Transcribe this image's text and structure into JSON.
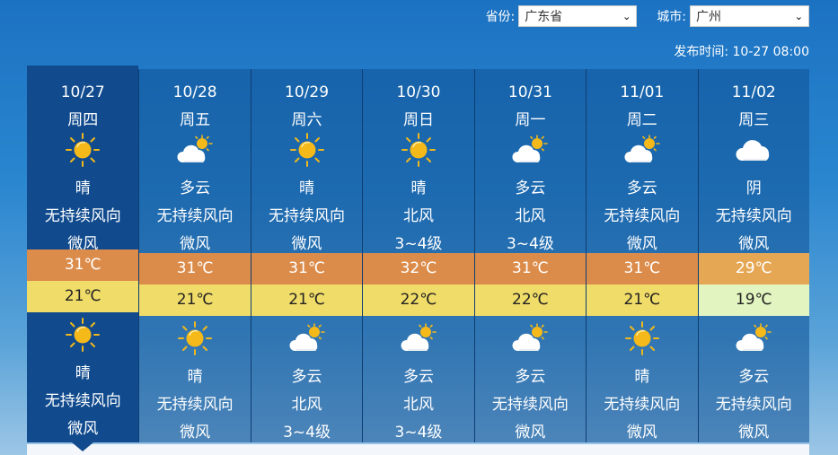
{
  "header": {
    "province_label": "省份:",
    "province_value": "广东省",
    "city_label": "城市:",
    "city_value": "广州",
    "publish_label": "发布时间:",
    "publish_time": "10-27 08:00"
  },
  "days": [
    {
      "date": "10/27",
      "weekday": "周四",
      "day_icon": "sun",
      "day_weather": "晴",
      "day_wind_dir": "无持续风向",
      "day_wind_force": "微风",
      "high": "31℃",
      "high_color": "#dc8c4a",
      "low": "21℃",
      "low_color": "#f0dc68",
      "night_icon": "sun",
      "night_weather": "晴",
      "night_wind_dir": "无持续风向",
      "night_wind_force": "微风"
    },
    {
      "date": "10/28",
      "weekday": "周五",
      "day_icon": "partly-cloudy",
      "day_weather": "多云",
      "day_wind_dir": "无持续风向",
      "day_wind_force": "微风",
      "high": "31℃",
      "high_color": "#dc8c4a",
      "low": "21℃",
      "low_color": "#f0dc68",
      "night_icon": "sun",
      "night_weather": "晴",
      "night_wind_dir": "无持续风向",
      "night_wind_force": "微风"
    },
    {
      "date": "10/29",
      "weekday": "周六",
      "day_icon": "sun",
      "day_weather": "晴",
      "day_wind_dir": "无持续风向",
      "day_wind_force": "微风",
      "high": "31℃",
      "high_color": "#dc8c4a",
      "low": "21℃",
      "low_color": "#f0dc68",
      "night_icon": "partly-cloudy",
      "night_weather": "多云",
      "night_wind_dir": "北风",
      "night_wind_force": "3~4级"
    },
    {
      "date": "10/30",
      "weekday": "周日",
      "day_icon": "sun",
      "day_weather": "晴",
      "day_wind_dir": "北风",
      "day_wind_force": "3~4级",
      "high": "32℃",
      "high_color": "#dc8c4a",
      "low": "22℃",
      "low_color": "#f0dc68",
      "night_icon": "partly-cloudy",
      "night_weather": "多云",
      "night_wind_dir": "北风",
      "night_wind_force": "3~4级"
    },
    {
      "date": "10/31",
      "weekday": "周一",
      "day_icon": "partly-cloudy",
      "day_weather": "多云",
      "day_wind_dir": "北风",
      "day_wind_force": "3~4级",
      "high": "31℃",
      "high_color": "#dc8c4a",
      "low": "22℃",
      "low_color": "#f0dc68",
      "night_icon": "partly-cloudy",
      "night_weather": "多云",
      "night_wind_dir": "无持续风向",
      "night_wind_force": "微风"
    },
    {
      "date": "11/01",
      "weekday": "周二",
      "day_icon": "partly-cloudy",
      "day_weather": "多云",
      "day_wind_dir": "无持续风向",
      "day_wind_force": "微风",
      "high": "31℃",
      "high_color": "#dc8c4a",
      "low": "21℃",
      "low_color": "#f0dc68",
      "night_icon": "sun",
      "night_weather": "晴",
      "night_wind_dir": "无持续风向",
      "night_wind_force": "微风"
    },
    {
      "date": "11/02",
      "weekday": "周三",
      "day_icon": "cloudy",
      "day_weather": "阴",
      "day_wind_dir": "无持续风向",
      "day_wind_force": "微风",
      "high": "29℃",
      "high_color": "#e5a754",
      "low": "19℃",
      "low_color": "#e2f4c0",
      "night_icon": "partly-cloudy",
      "night_weather": "多云",
      "night_wind_dir": "无持续风向",
      "night_wind_force": "微风"
    }
  ]
}
